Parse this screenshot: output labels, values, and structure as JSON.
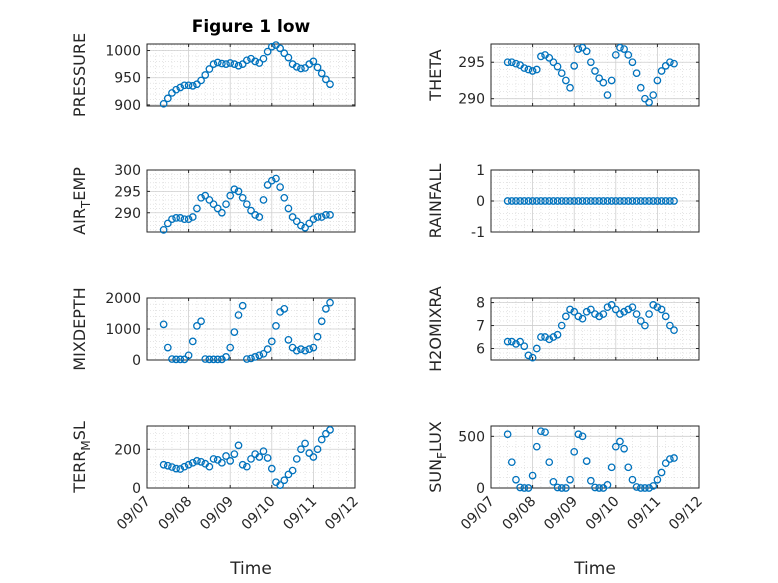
{
  "figure": {
    "title": "Figure 1 low",
    "marker_color": "#0072BD",
    "x_tick_labels": [
      "09/07",
      "09/08",
      "09/09",
      "09/10",
      "09/11",
      "09/12"
    ],
    "x_label": "Time"
  },
  "chart_data": [
    {
      "type": "scatter",
      "ylabel": "PRESSURE",
      "ylabel_sub": "",
      "yticks": [
        900,
        950,
        1000
      ],
      "ylim": [
        898,
        1012
      ],
      "x": [
        0.4,
        0.5,
        0.6,
        0.7,
        0.8,
        0.9,
        1.0,
        1.1,
        1.2,
        1.3,
        1.4,
        1.5,
        1.6,
        1.7,
        1.8,
        1.9,
        2.0,
        2.1,
        2.2,
        2.3,
        2.4,
        2.5,
        2.6,
        2.7,
        2.8,
        2.9,
        3.0,
        3.1,
        3.2,
        3.3,
        3.4,
        3.5,
        3.6,
        3.7,
        3.8,
        3.9,
        4.0,
        4.1,
        4.2,
        4.3,
        4.4
      ],
      "y": [
        902,
        912,
        922,
        928,
        932,
        936,
        936,
        935,
        938,
        945,
        955,
        966,
        975,
        978,
        976,
        975,
        977,
        975,
        972,
        975,
        982,
        985,
        980,
        977,
        985,
        998,
        1007,
        1010,
        1004,
        995,
        987,
        975,
        970,
        967,
        968,
        975,
        980,
        969,
        958,
        947,
        938
      ]
    },
    {
      "type": "scatter",
      "ylabel": "THETA",
      "ylabel_sub": "",
      "yticks": [
        290,
        295
      ],
      "ylim": [
        289,
        297.5
      ],
      "x": [
        0.4,
        0.5,
        0.6,
        0.7,
        0.8,
        0.9,
        1.0,
        1.1,
        1.2,
        1.3,
        1.4,
        1.5,
        1.6,
        1.7,
        1.8,
        1.9,
        2.0,
        2.1,
        2.2,
        2.3,
        2.4,
        2.5,
        2.6,
        2.7,
        2.8,
        2.9,
        3.0,
        3.1,
        3.2,
        3.3,
        3.4,
        3.5,
        3.6,
        3.7,
        3.8,
        3.9,
        4.0,
        4.1,
        4.2,
        4.3,
        4.4
      ],
      "y": [
        295,
        295,
        294.8,
        294.6,
        294.2,
        294,
        293.8,
        294,
        295.8,
        296,
        295.6,
        295,
        294.4,
        293.5,
        292.5,
        291.5,
        294.5,
        296.8,
        297,
        296.5,
        295,
        293.8,
        292.8,
        292.2,
        290.5,
        292.5,
        296,
        297,
        296.8,
        296,
        295,
        293.5,
        291.5,
        290,
        289.5,
        290.5,
        292.5,
        293.8,
        294.5,
        295,
        294.8
      ]
    },
    {
      "type": "scatter",
      "ylabel": "AIR",
      "ylabel_sub": "T",
      "ylabel_rest": "EMP",
      "yticks": [
        290,
        295,
        300
      ],
      "ylim": [
        285.5,
        300
      ],
      "x": [
        0.4,
        0.5,
        0.6,
        0.7,
        0.8,
        0.9,
        1.0,
        1.1,
        1.2,
        1.3,
        1.4,
        1.5,
        1.6,
        1.7,
        1.8,
        1.9,
        2.0,
        2.1,
        2.2,
        2.3,
        2.4,
        2.5,
        2.6,
        2.7,
        2.8,
        2.9,
        3.0,
        3.1,
        3.2,
        3.3,
        3.4,
        3.5,
        3.6,
        3.7,
        3.8,
        3.9,
        4.0,
        4.1,
        4.2,
        4.3,
        4.4
      ],
      "y": [
        286,
        287.5,
        288.5,
        288.8,
        288.8,
        288.5,
        288.5,
        289,
        291,
        293.5,
        294,
        293,
        292,
        291,
        290,
        292,
        294,
        295.5,
        295,
        293.5,
        292,
        290.5,
        289.5,
        289,
        293,
        296.5,
        297.5,
        298,
        296,
        293.5,
        291,
        289,
        288,
        287,
        286.5,
        287.5,
        288.5,
        289,
        289,
        289.5,
        289.5
      ]
    },
    {
      "type": "scatter",
      "ylabel": "RAINFALL",
      "ylabel_sub": "",
      "yticks": [
        -1,
        0,
        1
      ],
      "ylim": [
        -1,
        1
      ],
      "x": [
        0.4,
        0.5,
        0.6,
        0.7,
        0.8,
        0.9,
        1.0,
        1.1,
        1.2,
        1.3,
        1.4,
        1.5,
        1.6,
        1.7,
        1.8,
        1.9,
        2.0,
        2.1,
        2.2,
        2.3,
        2.4,
        2.5,
        2.6,
        2.7,
        2.8,
        2.9,
        3.0,
        3.1,
        3.2,
        3.3,
        3.4,
        3.5,
        3.6,
        3.7,
        3.8,
        3.9,
        4.0,
        4.1,
        4.2,
        4.3,
        4.4
      ],
      "y": [
        0,
        0,
        0,
        0,
        0,
        0,
        0,
        0,
        0,
        0,
        0,
        0,
        0,
        0,
        0,
        0,
        0,
        0,
        0,
        0,
        0,
        0,
        0,
        0,
        0,
        0,
        0,
        0,
        0,
        0,
        0,
        0,
        0,
        0,
        0,
        0,
        0,
        0,
        0,
        0,
        0
      ]
    },
    {
      "type": "scatter",
      "ylabel": "MIXDEPTH",
      "ylabel_sub": "",
      "yticks": [
        0,
        1000,
        2000
      ],
      "ylim": [
        0,
        2000
      ],
      "x": [
        0.4,
        0.5,
        0.6,
        0.7,
        0.8,
        0.9,
        1.0,
        1.1,
        1.2,
        1.3,
        1.4,
        1.5,
        1.6,
        1.7,
        1.8,
        1.9,
        2.0,
        2.1,
        2.2,
        2.3,
        2.4,
        2.5,
        2.6,
        2.7,
        2.8,
        2.9,
        3.0,
        3.1,
        3.2,
        3.3,
        3.4,
        3.5,
        3.6,
        3.7,
        3.8,
        3.9,
        4.0,
        4.1,
        4.2,
        4.3,
        4.4
      ],
      "y": [
        1150,
        400,
        30,
        20,
        20,
        20,
        150,
        600,
        1100,
        1250,
        30,
        20,
        20,
        20,
        20,
        100,
        400,
        900,
        1450,
        1750,
        30,
        50,
        100,
        150,
        200,
        350,
        600,
        1100,
        1550,
        1650,
        650,
        400,
        300,
        350,
        300,
        350,
        400,
        750,
        1250,
        1650,
        1850
      ]
    },
    {
      "type": "scatter",
      "ylabel": "H2OMIXRA",
      "ylabel_sub": "",
      "yticks": [
        6,
        7,
        8
      ],
      "ylim": [
        5.5,
        8.2
      ],
      "x": [
        0.4,
        0.5,
        0.6,
        0.7,
        0.8,
        0.9,
        1.0,
        1.1,
        1.2,
        1.3,
        1.4,
        1.5,
        1.6,
        1.7,
        1.8,
        1.9,
        2.0,
        2.1,
        2.2,
        2.3,
        2.4,
        2.5,
        2.6,
        2.7,
        2.8,
        2.9,
        3.0,
        3.1,
        3.2,
        3.3,
        3.4,
        3.5,
        3.6,
        3.7,
        3.8,
        3.9,
        4.0,
        4.1,
        4.2,
        4.3,
        4.4
      ],
      "y": [
        6.3,
        6.3,
        6.2,
        6.3,
        6.1,
        5.7,
        5.6,
        6.0,
        6.5,
        6.5,
        6.4,
        6.5,
        6.6,
        7.0,
        7.4,
        7.7,
        7.6,
        7.4,
        7.3,
        7.6,
        7.7,
        7.5,
        7.4,
        7.5,
        7.8,
        7.9,
        7.7,
        7.5,
        7.6,
        7.7,
        7.8,
        7.5,
        7.2,
        7.0,
        7.5,
        7.9,
        7.8,
        7.7,
        7.4,
        7.0,
        6.8
      ]
    },
    {
      "type": "scatter",
      "ylabel": "TERR",
      "ylabel_sub": "M",
      "ylabel_rest": "SL",
      "yticks": [
        0,
        200
      ],
      "ylim": [
        0,
        320
      ],
      "x": [
        0.4,
        0.5,
        0.6,
        0.7,
        0.8,
        0.9,
        1.0,
        1.1,
        1.2,
        1.3,
        1.4,
        1.5,
        1.6,
        1.7,
        1.8,
        1.9,
        2.0,
        2.1,
        2.2,
        2.3,
        2.4,
        2.5,
        2.6,
        2.7,
        2.8,
        2.9,
        3.0,
        3.1,
        3.2,
        3.3,
        3.4,
        3.5,
        3.6,
        3.7,
        3.8,
        3.9,
        4.0,
        4.1,
        4.2,
        4.3,
        4.4
      ],
      "y": [
        120,
        115,
        108,
        100,
        98,
        110,
        120,
        130,
        140,
        135,
        125,
        110,
        150,
        145,
        130,
        165,
        140,
        175,
        220,
        120,
        110,
        150,
        175,
        160,
        190,
        155,
        100,
        30,
        15,
        40,
        70,
        90,
        150,
        200,
        230,
        180,
        160,
        200,
        250,
        280,
        300
      ]
    },
    {
      "type": "scatter",
      "ylabel": "SUN",
      "ylabel_sub": "F",
      "ylabel_rest": "LUX",
      "yticks": [
        0,
        500
      ],
      "ylim": [
        0,
        600
      ],
      "x": [
        0.4,
        0.5,
        0.6,
        0.7,
        0.8,
        0.9,
        1.0,
        1.1,
        1.2,
        1.3,
        1.4,
        1.5,
        1.6,
        1.7,
        1.8,
        1.9,
        2.0,
        2.1,
        2.2,
        2.3,
        2.4,
        2.5,
        2.6,
        2.7,
        2.8,
        2.9,
        3.0,
        3.1,
        3.2,
        3.3,
        3.4,
        3.5,
        3.6,
        3.7,
        3.8,
        3.9,
        4.0,
        4.1,
        4.2,
        4.3,
        4.4
      ],
      "y": [
        520,
        250,
        80,
        5,
        0,
        0,
        120,
        400,
        550,
        540,
        250,
        60,
        5,
        0,
        0,
        80,
        350,
        520,
        500,
        260,
        70,
        5,
        0,
        0,
        30,
        200,
        400,
        450,
        380,
        200,
        80,
        10,
        0,
        0,
        0,
        20,
        80,
        150,
        240,
        280,
        290
      ]
    }
  ]
}
